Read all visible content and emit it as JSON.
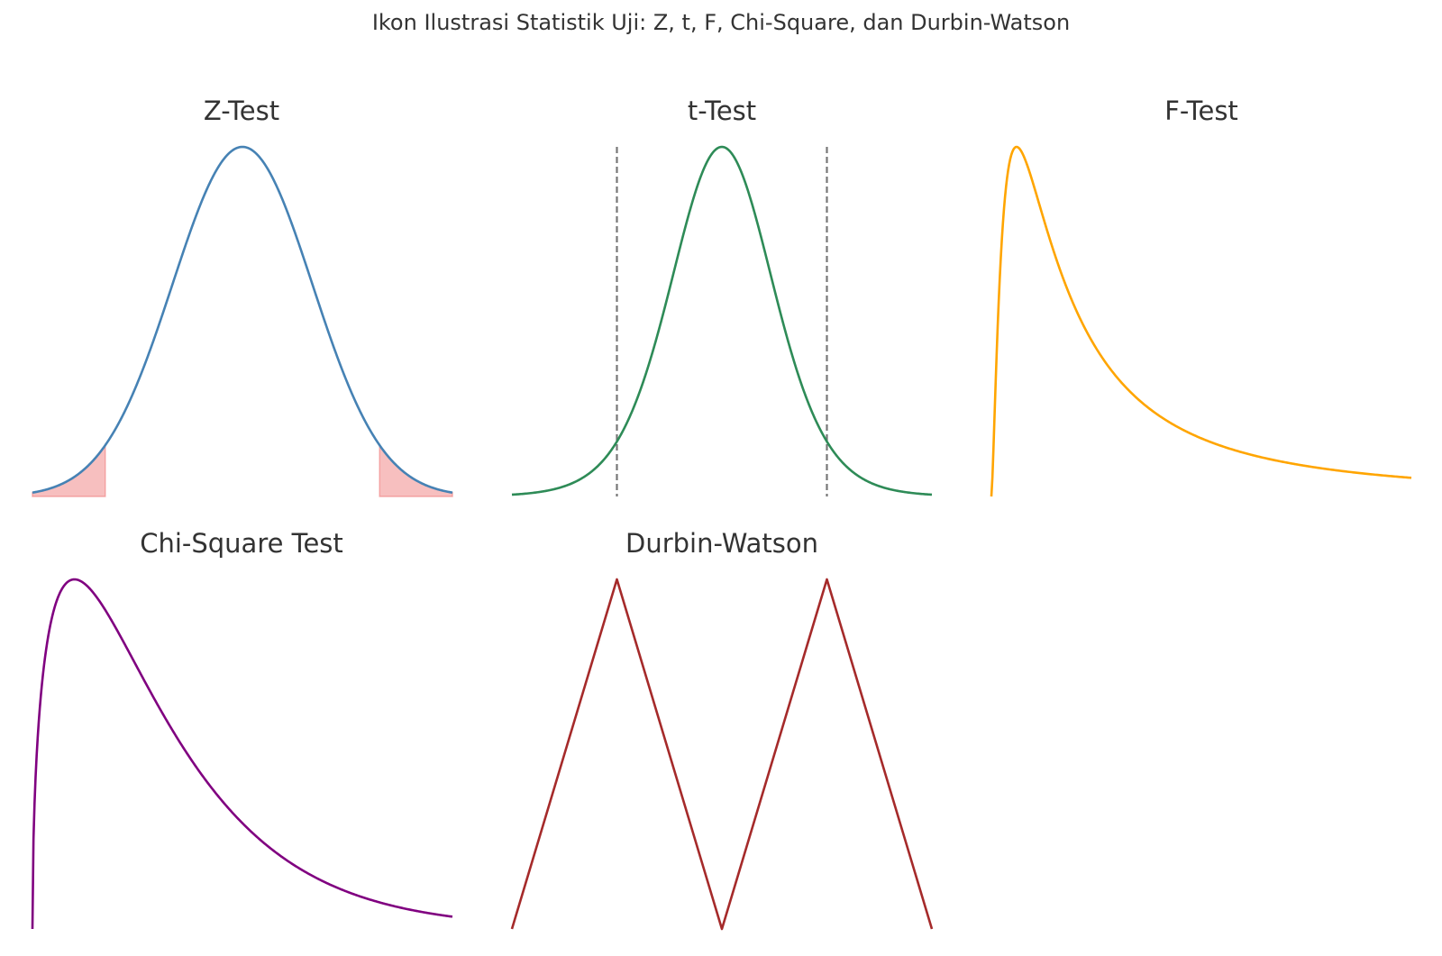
{
  "figure": {
    "title": "Ikon Ilustrasi Statistik Uji: Z, t, F, Chi-Square, dan Durbin-Watson"
  },
  "chart_data": [
    {
      "type": "line",
      "title": "Z-Test",
      "curve": "standard-normal-pdf",
      "x_range": [
        -3,
        3
      ],
      "color": "#4682b4",
      "shaded_regions": [
        [
          -3,
          -1.96
        ],
        [
          1.96,
          3
        ]
      ],
      "shade_color": "#f08080",
      "axes": "off"
    },
    {
      "type": "line",
      "title": "t-Test",
      "curve": "t-pdf",
      "x_range": [
        -4,
        4
      ],
      "color": "#2e8b57",
      "critical_values": [
        -2,
        2
      ],
      "critical_line_color": "#777777",
      "axes": "off"
    },
    {
      "type": "line",
      "title": "F-Test",
      "curve": "f-pdf",
      "x_range": [
        0,
        5
      ],
      "color": "#ffa500",
      "axes": "off"
    },
    {
      "type": "line",
      "title": "Chi-Square Test",
      "curve": "chi-square-pdf",
      "x_range": [
        0,
        10
      ],
      "color": "#800080",
      "axes": "off"
    },
    {
      "type": "line",
      "title": "Durbin-Watson",
      "x": [
        0,
        1,
        2,
        3,
        4
      ],
      "y": [
        0,
        1,
        0,
        1,
        0
      ],
      "color": "#a52a2a",
      "axes": "off"
    }
  ]
}
